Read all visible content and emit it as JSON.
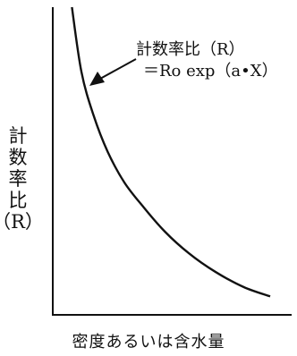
{
  "chart_data": {
    "type": "line",
    "title": "",
    "xlabel": "密度あるいは含水量",
    "ylabel": "計数率比（R）",
    "ylabel_chars": [
      "計",
      "数",
      "率",
      "比",
      "（R）"
    ],
    "annotation": {
      "line1": "計数率比（R）",
      "line2": "＝Ro exp（a•X）"
    },
    "grid": false,
    "legend": "none",
    "xlim": [
      0,
      1
    ],
    "ylim": [
      0,
      1
    ],
    "series": [
      {
        "x": [
          0.08,
          0.12,
          0.17,
          0.23,
          0.3,
          0.38,
          0.47,
          0.57,
          0.68,
          0.8,
          0.91
        ],
        "y": [
          1.0,
          0.79,
          0.65,
          0.53,
          0.43,
          0.35,
          0.27,
          0.2,
          0.14,
          0.09,
          0.06
        ]
      }
    ],
    "colors": {
      "axis": "#111111",
      "line": "#111111",
      "background": "#ffffff"
    }
  }
}
